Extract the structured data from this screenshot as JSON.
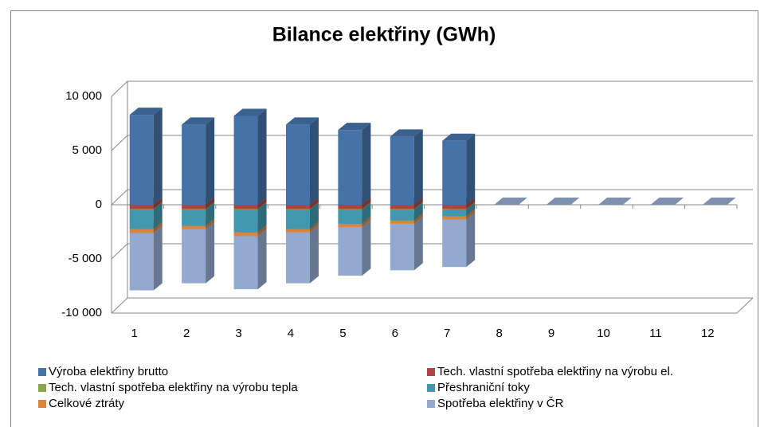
{
  "chart_data": {
    "type": "bar3d_stacked",
    "title": "Bilance elektřiny (GWh)",
    "categories": [
      "1",
      "2",
      "3",
      "4",
      "5",
      "6",
      "7",
      "8",
      "9",
      "10",
      "11",
      "12"
    ],
    "series": [
      {
        "name": "Výroba elektřiny brutto",
        "color": "#4572a7",
        "values": [
          8300,
          7400,
          8200,
          7400,
          6900,
          6300,
          5900,
          0,
          0,
          0,
          0,
          0
        ]
      },
      {
        "name": "Tech. vlastní spotřeba elektřiny na výrobu el.",
        "color": "#aa4643",
        "values": [
          -400,
          -400,
          -400,
          -400,
          -400,
          -400,
          -400,
          0,
          0,
          0,
          0,
          0
        ]
      },
      {
        "name": "Tech. vlastní spotřeba elektřiny na výrobu tepla",
        "color": "#89a54e",
        "values": [
          -50,
          -50,
          -50,
          -50,
          -50,
          -50,
          -50,
          0,
          0,
          0,
          0,
          0
        ]
      },
      {
        "name": "Přeshraniční toky",
        "color": "#4198af",
        "values": [
          -1800,
          -1500,
          -2100,
          -1800,
          -1300,
          -1000,
          -600,
          0,
          0,
          0,
          0,
          0
        ]
      },
      {
        "name": "Celkové ztráty",
        "color": "#db843d",
        "values": [
          -350,
          -300,
          -350,
          -300,
          -300,
          -300,
          -300,
          0,
          0,
          0,
          0,
          0
        ]
      },
      {
        "name": "Spotřeba elektřiny v ČR",
        "color": "#93a9cf",
        "values": [
          -5300,
          -5000,
          -4900,
          -4700,
          -4500,
          -4300,
          -4400,
          0,
          0,
          0,
          0,
          0
        ]
      }
    ],
    "ylim": [
      -10000,
      10000
    ],
    "yticks": [
      {
        "value": -10000,
        "label": "-10 000"
      },
      {
        "value": -5000,
        "label": "-5 000"
      },
      0,
      {
        "value": 5000,
        "label": "5 000"
      },
      {
        "value": 10000,
        "label": "10 000"
      }
    ],
    "grid": true,
    "legend": "bottom"
  }
}
